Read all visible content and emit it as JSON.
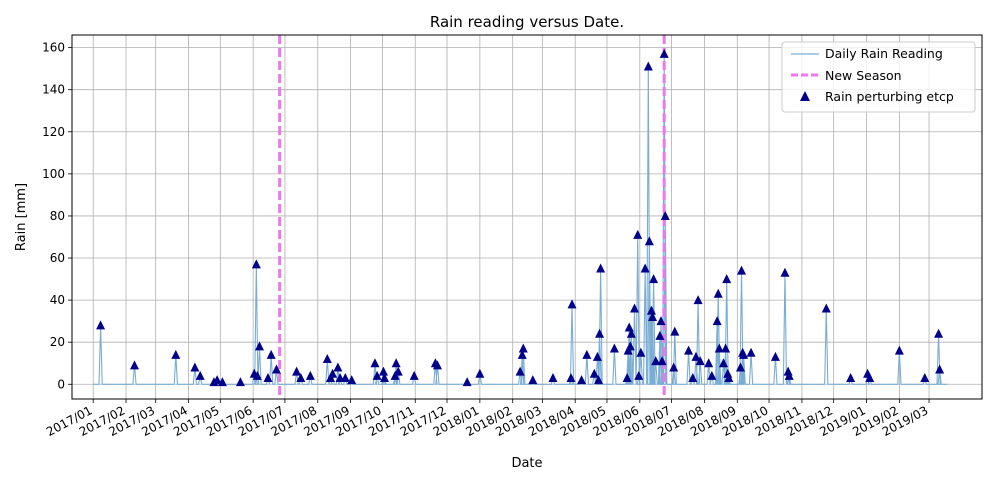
{
  "chart_data": {
    "type": "line",
    "title": "Rain reading versus Date.",
    "xlabel": "Date",
    "ylabel": "Rain [mm]",
    "xlim": [
      "2016-12-12",
      "2019-04-20"
    ],
    "ylim": [
      -7,
      166
    ],
    "grid": true,
    "legend_position": "top-right",
    "x_tick_labels": [
      "2017/01",
      "2017/02",
      "2017/03",
      "2017/04",
      "2017/05",
      "2017/06",
      "2017/07",
      "2017/08",
      "2017/09",
      "2017/10",
      "2017/11",
      "2017/12",
      "2018/01",
      "2018/02",
      "2018/03",
      "2018/04",
      "2018/05",
      "2018/06",
      "2018/07",
      "2018/08",
      "2018/09",
      "2018/10",
      "2018/11",
      "2018/12",
      "2019/01",
      "2019/02",
      "2019/03"
    ],
    "y_ticks": [
      0,
      20,
      40,
      60,
      80,
      100,
      120,
      140,
      160
    ],
    "x_range_of_series": [
      "2017-01-01",
      "2019-03-18"
    ],
    "series": [
      {
        "name": "Daily Rain Reading",
        "kind": "line",
        "color": "#7aadd4",
        "points": [
          {
            "date": "2017-01-08",
            "value": 28
          },
          {
            "date": "2017-02-09",
            "value": 9
          },
          {
            "date": "2017-03-20",
            "value": 14
          },
          {
            "date": "2017-04-07",
            "value": 8
          },
          {
            "date": "2017-04-12",
            "value": 4
          },
          {
            "date": "2017-04-25",
            "value": 1
          },
          {
            "date": "2017-04-28",
            "value": 2
          },
          {
            "date": "2017-05-03",
            "value": 1
          },
          {
            "date": "2017-05-20",
            "value": 1
          },
          {
            "date": "2017-06-02",
            "value": 5
          },
          {
            "date": "2017-06-04",
            "value": 57
          },
          {
            "date": "2017-06-05",
            "value": 4
          },
          {
            "date": "2017-06-07",
            "value": 18
          },
          {
            "date": "2017-06-15",
            "value": 3
          },
          {
            "date": "2017-06-18",
            "value": 14
          },
          {
            "date": "2017-06-23",
            "value": 7
          },
          {
            "date": "2017-07-12",
            "value": 6
          },
          {
            "date": "2017-07-16",
            "value": 3
          },
          {
            "date": "2017-07-25",
            "value": 4
          },
          {
            "date": "2017-08-10",
            "value": 12
          },
          {
            "date": "2017-08-13",
            "value": 3
          },
          {
            "date": "2017-08-15",
            "value": 5
          },
          {
            "date": "2017-08-20",
            "value": 8
          },
          {
            "date": "2017-08-22",
            "value": 3
          },
          {
            "date": "2017-08-27",
            "value": 3
          },
          {
            "date": "2017-09-02",
            "value": 2
          },
          {
            "date": "2017-09-24",
            "value": 10
          },
          {
            "date": "2017-09-26",
            "value": 4
          },
          {
            "date": "2017-10-02",
            "value": 6
          },
          {
            "date": "2017-10-03",
            "value": 3
          },
          {
            "date": "2017-10-13",
            "value": 4
          },
          {
            "date": "2017-10-14",
            "value": 10
          },
          {
            "date": "2017-10-16",
            "value": 6
          },
          {
            "date": "2017-10-31",
            "value": 4
          },
          {
            "date": "2017-11-20",
            "value": 10
          },
          {
            "date": "2017-11-22",
            "value": 9
          },
          {
            "date": "2017-12-20",
            "value": 1
          },
          {
            "date": "2018-01-01",
            "value": 5
          },
          {
            "date": "2018-02-08",
            "value": 6
          },
          {
            "date": "2018-02-10",
            "value": 14
          },
          {
            "date": "2018-02-11",
            "value": 17
          },
          {
            "date": "2018-02-20",
            "value": 2
          },
          {
            "date": "2018-03-11",
            "value": 3
          },
          {
            "date": "2018-03-28",
            "value": 3
          },
          {
            "date": "2018-03-29",
            "value": 38
          },
          {
            "date": "2018-04-07",
            "value": 2
          },
          {
            "date": "2018-04-12",
            "value": 14
          },
          {
            "date": "2018-04-19",
            "value": 5
          },
          {
            "date": "2018-04-22",
            "value": 13
          },
          {
            "date": "2018-04-23",
            "value": 2
          },
          {
            "date": "2018-04-24",
            "value": 24
          },
          {
            "date": "2018-04-25",
            "value": 55
          },
          {
            "date": "2018-05-08",
            "value": 17
          },
          {
            "date": "2018-05-20",
            "value": 3
          },
          {
            "date": "2018-05-21",
            "value": 16
          },
          {
            "date": "2018-05-22",
            "value": 27
          },
          {
            "date": "2018-05-23",
            "value": 18
          },
          {
            "date": "2018-05-24",
            "value": 24
          },
          {
            "date": "2018-05-27",
            "value": 36
          },
          {
            "date": "2018-05-30",
            "value": 71
          },
          {
            "date": "2018-05-31",
            "value": 4
          },
          {
            "date": "2018-06-02",
            "value": 15
          },
          {
            "date": "2018-06-06",
            "value": 55
          },
          {
            "date": "2018-06-09",
            "value": 151
          },
          {
            "date": "2018-06-10",
            "value": 68
          },
          {
            "date": "2018-06-12",
            "value": 35
          },
          {
            "date": "2018-06-13",
            "value": 32
          },
          {
            "date": "2018-06-14",
            "value": 50
          },
          {
            "date": "2018-06-16",
            "value": 11
          },
          {
            "date": "2018-06-20",
            "value": 23
          },
          {
            "date": "2018-06-21",
            "value": 30
          },
          {
            "date": "2018-06-22",
            "value": 11
          },
          {
            "date": "2018-06-24",
            "value": 157
          },
          {
            "date": "2018-06-25",
            "value": 80
          },
          {
            "date": "2018-07-04",
            "value": 25
          },
          {
            "date": "2018-07-03",
            "value": 8
          },
          {
            "date": "2018-07-17",
            "value": 16
          },
          {
            "date": "2018-07-21",
            "value": 3
          },
          {
            "date": "2018-07-24",
            "value": 13
          },
          {
            "date": "2018-07-26",
            "value": 40
          },
          {
            "date": "2018-07-28",
            "value": 11
          },
          {
            "date": "2018-08-05",
            "value": 10
          },
          {
            "date": "2018-08-08",
            "value": 4
          },
          {
            "date": "2018-08-13",
            "value": 30
          },
          {
            "date": "2018-08-14",
            "value": 43
          },
          {
            "date": "2018-08-15",
            "value": 17
          },
          {
            "date": "2018-08-19",
            "value": 10
          },
          {
            "date": "2018-08-21",
            "value": 17
          },
          {
            "date": "2018-08-22",
            "value": 50
          },
          {
            "date": "2018-08-23",
            "value": 5
          },
          {
            "date": "2018-08-24",
            "value": 3
          },
          {
            "date": "2018-09-04",
            "value": 8
          },
          {
            "date": "2018-09-05",
            "value": 54
          },
          {
            "date": "2018-09-06",
            "value": 15
          },
          {
            "date": "2018-09-07",
            "value": 14
          },
          {
            "date": "2018-09-14",
            "value": 15
          },
          {
            "date": "2018-10-07",
            "value": 13
          },
          {
            "date": "2018-10-16",
            "value": 53
          },
          {
            "date": "2018-10-19",
            "value": 6
          },
          {
            "date": "2018-10-20",
            "value": 4
          },
          {
            "date": "2018-11-24",
            "value": 36
          },
          {
            "date": "2018-12-17",
            "value": 3
          },
          {
            "date": "2019-01-02",
            "value": 5
          },
          {
            "date": "2019-01-04",
            "value": 3
          },
          {
            "date": "2019-02-01",
            "value": 16
          },
          {
            "date": "2019-02-25",
            "value": 3
          },
          {
            "date": "2019-03-10",
            "value": 24
          },
          {
            "date": "2019-03-11",
            "value": 7
          }
        ]
      },
      {
        "name": "New Season",
        "kind": "vline",
        "color": "#ee77ee",
        "dates": [
          "2017-06-26",
          "2018-06-24"
        ]
      },
      {
        "name": "Rain perturbing etcp",
        "kind": "scatter",
        "marker": "triangle",
        "color": "#00008b"
      }
    ]
  }
}
